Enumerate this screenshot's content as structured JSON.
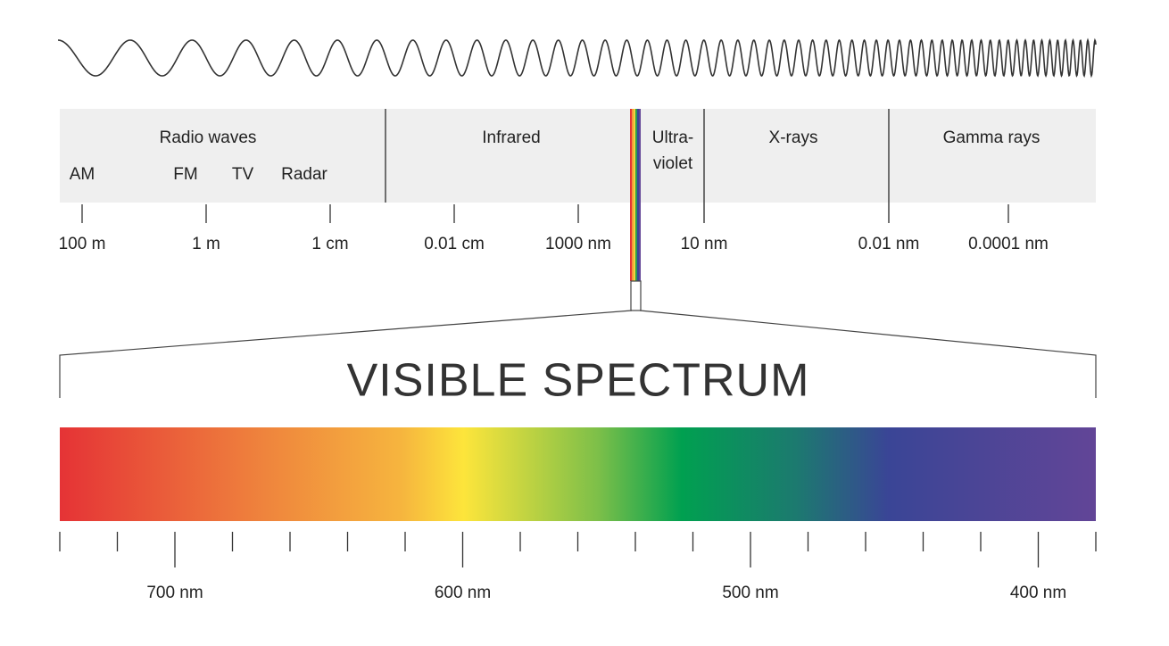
{
  "bands": [
    {
      "lines": [
        "Radio waves"
      ]
    },
    {
      "lines": [
        "Infrared"
      ]
    },
    {
      "lines": [
        "Ultra-",
        "violet"
      ]
    },
    {
      "lines": [
        "X-rays"
      ]
    },
    {
      "lines": [
        "Gamma rays"
      ]
    }
  ],
  "radio_sub": [
    "AM",
    "FM",
    "TV",
    "Radar"
  ],
  "scale_labels": [
    "100 m",
    "1 m",
    "1 cm",
    "0.01 cm",
    "1000 nm",
    "10 nm",
    "0.01 nm",
    "0.0001 nm"
  ],
  "title": "VISIBLE SPECTRUM",
  "visible_labels": [
    "700 nm",
    "600 nm",
    "500 nm",
    "400 nm"
  ]
}
